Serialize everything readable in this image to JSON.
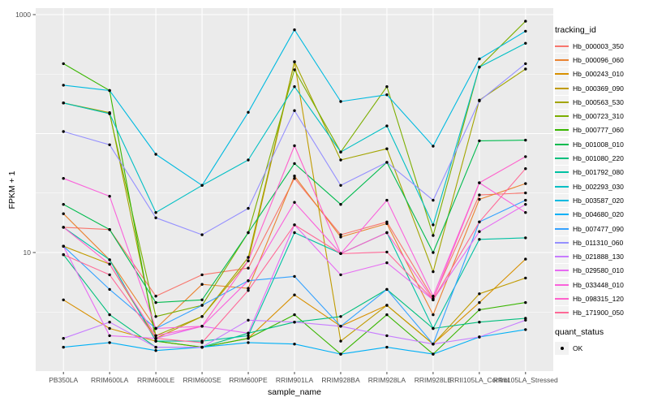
{
  "chart_data": {
    "type": "line",
    "title": "",
    "xlabel": "sample_name",
    "ylabel": "FPKM + 1",
    "yscale": "log10",
    "ylim": [
      1,
      1130
    ],
    "grid": true,
    "panel_bg": "#EBEBEB",
    "gridline_color": "#FFFFFF",
    "axis_text_color": "#4D4D4D",
    "point_color": "#000000",
    "y_ticks": [
      {
        "value": 10,
        "label": "10"
      },
      {
        "value": 1000,
        "label": "1000"
      }
    ],
    "y_major_gridlines": [
      1,
      10,
      100,
      1000
    ],
    "y_minor_gridlines": [
      3.162,
      31.62,
      316.2
    ],
    "categories": [
      "PB350LA",
      "RRIM600LA",
      "RRIM600LE",
      "RRIM600SE",
      "RRIM600PE",
      "RRIM901LA",
      "RRIM928BA",
      "RRIM928LA",
      "RRIM928LE",
      "RRII105LA_Control",
      "RRII105LA_Stressed"
    ],
    "legend": {
      "title": "tracking_id",
      "position": "right",
      "key_bg": "#F2F2F2"
    },
    "quant_legend": {
      "title": "quant_status",
      "items": [
        {
          "label": "OK",
          "marker": "black-point"
        }
      ]
    },
    "series": [
      {
        "name": "Hb_000003_350",
        "color": "#F8766D",
        "values": [
          16.3,
          15.6,
          4.3,
          6.5,
          7.4,
          42,
          14.1,
          18.1,
          4.1,
          30.5,
          31.7
        ]
      },
      {
        "name": "Hb_000096_060",
        "color": "#EA8331",
        "values": [
          21.2,
          8.7,
          2.3,
          5.4,
          5.0,
          44,
          13.5,
          17.5,
          3.0,
          28.0,
          38.0
        ]
      },
      {
        "name": "Hb_000243_010",
        "color": "#D89000",
        "values": [
          4.0,
          2.3,
          1.8,
          1.6,
          1.9,
          4.4,
          2.4,
          3.6,
          1.7,
          3.8,
          8.8
        ]
      },
      {
        "name": "Hb_000369_090",
        "color": "#C09B00",
        "values": [
          11.3,
          8.0,
          1.9,
          2.9,
          8.5,
          400,
          1.8,
          3.6,
          1.7,
          4.5,
          6.1
        ]
      },
      {
        "name": "Hb_000563_530",
        "color": "#A3A500",
        "values": [
          181,
          150,
          2.0,
          2.9,
          9.1,
          402,
          60,
          74.5,
          6.9,
          191,
          349
        ]
      },
      {
        "name": "Hb_000723_310",
        "color": "#7CAE00",
        "values": [
          181,
          147,
          2.9,
          3.6,
          14.7,
          344,
          70,
          248,
          13.9,
          362,
          881
        ]
      },
      {
        "name": "Hb_000777_060",
        "color": "#39B600",
        "values": [
          387,
          230,
          1.8,
          1.6,
          1.9,
          3.0,
          1.4,
          3.0,
          1.4,
          3.3,
          3.8
        ]
      },
      {
        "name": "Hb_001008_010",
        "color": "#00BB4E",
        "values": [
          25.4,
          15.6,
          3.8,
          4.0,
          14.7,
          56,
          25.4,
          57.3,
          10.0,
          87,
          88
        ]
      },
      {
        "name": "Hb_001080_220",
        "color": "#00BF7D",
        "values": [
          9.6,
          3.0,
          1.6,
          1.6,
          2.1,
          2.6,
          2.9,
          4.9,
          2.3,
          2.6,
          2.8
        ]
      },
      {
        "name": "Hb_001792_080",
        "color": "#00C1A3",
        "values": [
          16.3,
          8.7,
          1.8,
          1.8,
          2.0,
          14.7,
          9.8,
          14.7,
          2.3,
          12.9,
          13.3
        ]
      },
      {
        "name": "Hb_002293_030",
        "color": "#00BFC4",
        "values": [
          181,
          147,
          21.7,
          36.7,
          60,
          248,
          70,
          116,
          17.1,
          362,
          574
        ]
      },
      {
        "name": "Hb_003587_020",
        "color": "#00BAE0",
        "values": [
          255,
          230,
          67,
          36.7,
          151,
          745,
          186,
          212,
          78.4,
          424,
          726
        ]
      },
      {
        "name": "Hb_004680_020",
        "color": "#00B0F6",
        "values": [
          1.6,
          1.75,
          1.5,
          1.6,
          1.75,
          1.7,
          1.4,
          1.6,
          1.4,
          1.95,
          2.25
        ]
      },
      {
        "name": "Hb_007477_090",
        "color": "#35A2FF",
        "values": [
          11.3,
          4.9,
          2.3,
          3.6,
          5.8,
          6.3,
          2.4,
          4.9,
          1.7,
          18.1,
          27.5
        ]
      },
      {
        "name": "Hb_011310_060",
        "color": "#9590FF",
        "values": [
          104,
          80.5,
          19.6,
          14.1,
          23.5,
          156,
          36.7,
          57.3,
          27.5,
          188,
          387
        ]
      },
      {
        "name": "Hb_021888_130",
        "color": "#C77CFF",
        "values": [
          1.9,
          2.6,
          1.6,
          1.6,
          2.7,
          2.6,
          2.4,
          2.0,
          1.7,
          1.95,
          2.7
        ]
      },
      {
        "name": "Hb_029580_010",
        "color": "#E76BF3",
        "values": [
          11.3,
          2.0,
          1.9,
          2.4,
          2.1,
          17.1,
          6.5,
          8.2,
          4.0,
          15.0,
          25.4
        ]
      },
      {
        "name": "Hb_033448_010",
        "color": "#FA62DB",
        "values": [
          42,
          29.7,
          2.3,
          2.4,
          5.8,
          26.4,
          9.8,
          27.5,
          4.3,
          38.6,
          21.7
        ]
      },
      {
        "name": "Hb_098315_120",
        "color": "#FF61CC",
        "values": [
          16.3,
          8.0,
          2.0,
          2.4,
          8.5,
          79,
          9.8,
          14.7,
          4.0,
          38.6,
          64
        ]
      },
      {
        "name": "Hb_171900_050",
        "color": "#FF6A98",
        "values": [
          9.6,
          6.5,
          1.9,
          1.75,
          4.8,
          17.1,
          9.8,
          10.1,
          4.0,
          18.1,
          50.7
        ]
      }
    ]
  }
}
